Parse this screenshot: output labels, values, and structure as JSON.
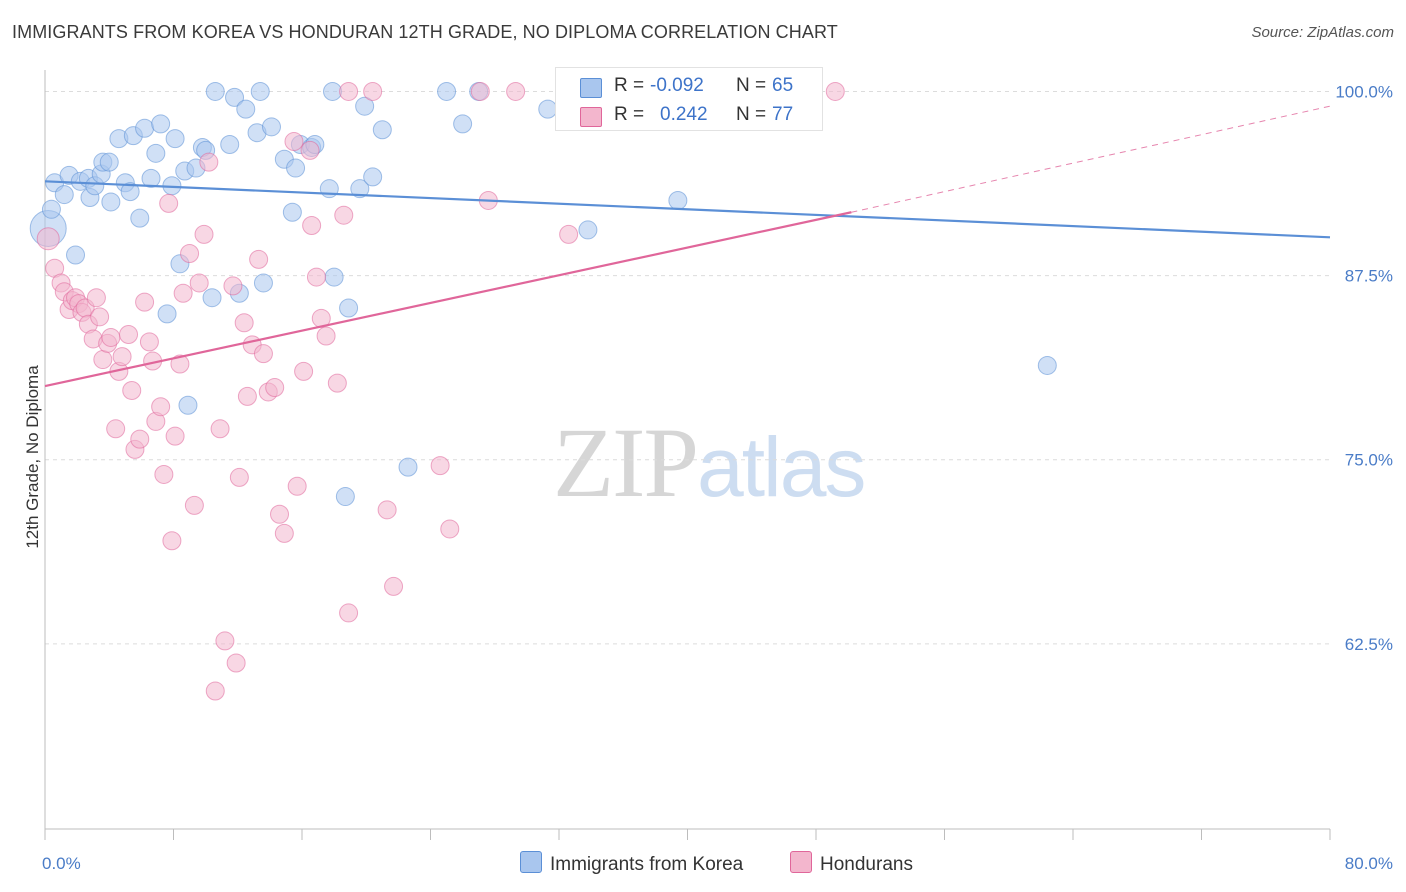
{
  "title": "IMMIGRANTS FROM KOREA VS HONDURAN 12TH GRADE, NO DIPLOMA CORRELATION CHART",
  "source": "Source: ZipAtlas.com",
  "watermark": {
    "zip": "ZIP",
    "atlas": "atlas"
  },
  "legend": {
    "rows": [
      {
        "r_label": "R =",
        "r_value": "-0.092",
        "n_label": "N =",
        "n_value": "65"
      },
      {
        "r_label": "R =",
        "r_value": "0.242",
        "n_label": "N =",
        "n_value": "77"
      }
    ]
  },
  "colors": {
    "korea": "#5b8fd6",
    "korea_fill": "#a9c6ee",
    "hondurans": "#e0669a",
    "hondurans_fill": "#f3b6cd",
    "axis_tick_text": "#4a7cc7",
    "grid": "#dcdcdc"
  },
  "chart_data": {
    "type": "scatter",
    "title": "IMMIGRANTS FROM KOREA VS HONDURAN 12TH GRADE, NO DIPLOMA CORRELATION CHART",
    "xlabel": "",
    "ylabel": "12th Grade, No Diploma",
    "xlim": [
      0,
      80
    ],
    "ylim": [
      50,
      102
    ],
    "x_tick_labels": [
      "0.0%",
      "80.0%"
    ],
    "y_ticks": [
      62.5,
      75.0,
      87.5,
      100.0
    ],
    "y_tick_labels": [
      "62.5%",
      "75.0%",
      "87.5%",
      "100.0%"
    ],
    "grid": true,
    "legend_position": "bottom",
    "series": [
      {
        "name": "Immigrants from Korea",
        "color": "#5b8fd6",
        "trend": {
          "x": [
            0,
            80
          ],
          "y": [
            93.9,
            90.1
          ],
          "dashed_to": null
        },
        "points": [
          [
            0.2,
            90.7,
            18
          ],
          [
            0.4,
            92.0,
            9
          ],
          [
            0.6,
            93.8,
            9
          ],
          [
            1.2,
            93.0,
            9
          ],
          [
            1.5,
            94.3,
            9
          ],
          [
            1.9,
            88.9,
            9
          ],
          [
            2.2,
            93.9,
            9
          ],
          [
            2.7,
            94.1,
            9
          ],
          [
            2.8,
            92.8,
            9
          ],
          [
            3.1,
            93.6,
            9
          ],
          [
            3.5,
            94.4,
            9
          ],
          [
            3.6,
            95.2,
            9
          ],
          [
            4.0,
            95.2,
            9
          ],
          [
            4.1,
            92.5,
            9
          ],
          [
            4.6,
            96.8,
            9
          ],
          [
            5.0,
            93.8,
            9
          ],
          [
            5.3,
            93.2,
            9
          ],
          [
            5.5,
            97.0,
            9
          ],
          [
            5.9,
            91.4,
            9
          ],
          [
            6.2,
            97.5,
            9
          ],
          [
            6.6,
            94.1,
            9
          ],
          [
            6.9,
            95.8,
            9
          ],
          [
            7.2,
            97.8,
            9
          ],
          [
            7.6,
            84.9,
            9
          ],
          [
            7.9,
            93.6,
            9
          ],
          [
            8.1,
            96.8,
            9
          ],
          [
            8.4,
            88.3,
            9
          ],
          [
            8.7,
            94.6,
            9
          ],
          [
            8.9,
            78.7,
            9
          ],
          [
            9.4,
            94.8,
            9
          ],
          [
            9.8,
            96.2,
            9
          ],
          [
            10.0,
            96.0,
            9
          ],
          [
            10.4,
            86.0,
            9
          ],
          [
            10.6,
            100.0,
            9
          ],
          [
            11.5,
            96.4,
            9
          ],
          [
            11.8,
            99.6,
            9
          ],
          [
            12.1,
            86.3,
            9
          ],
          [
            12.5,
            98.8,
            9
          ],
          [
            13.2,
            97.2,
            9
          ],
          [
            13.4,
            100.0,
            9
          ],
          [
            13.6,
            87.0,
            9
          ],
          [
            14.1,
            97.6,
            9
          ],
          [
            14.9,
            95.4,
            9
          ],
          [
            15.4,
            91.8,
            9
          ],
          [
            15.6,
            94.8,
            9
          ],
          [
            15.9,
            96.4,
            9
          ],
          [
            16.6,
            96.2,
            9
          ],
          [
            16.8,
            96.4,
            9
          ],
          [
            17.7,
            93.4,
            9
          ],
          [
            17.9,
            100.0,
            9
          ],
          [
            18.0,
            87.4,
            9
          ],
          [
            18.7,
            72.5,
            9
          ],
          [
            18.9,
            85.3,
            9
          ],
          [
            19.6,
            93.4,
            9
          ],
          [
            19.9,
            99.0,
            9
          ],
          [
            20.4,
            94.2,
            9
          ],
          [
            21.0,
            97.4,
            9
          ],
          [
            22.6,
            74.5,
            9
          ],
          [
            25.0,
            100.0,
            9
          ],
          [
            26.0,
            97.8,
            9
          ],
          [
            27.0,
            100.0,
            9
          ],
          [
            31.3,
            98.8,
            9
          ],
          [
            33.8,
            90.6,
            9
          ],
          [
            39.4,
            92.6,
            9
          ],
          [
            62.4,
            81.4,
            9
          ]
        ]
      },
      {
        "name": "Hondurans",
        "color": "#e0669a",
        "trend": {
          "x": [
            0,
            50.2
          ],
          "y": [
            80.0,
            91.8
          ],
          "dashed_to": [
            80,
            99.0
          ]
        },
        "points": [
          [
            0.2,
            90.0,
            11
          ],
          [
            0.6,
            88.0,
            9
          ],
          [
            1.0,
            87.0,
            9
          ],
          [
            1.2,
            86.4,
            9
          ],
          [
            1.5,
            85.2,
            9
          ],
          [
            1.7,
            85.8,
            9
          ],
          [
            1.9,
            86.0,
            9
          ],
          [
            2.1,
            85.6,
            9
          ],
          [
            2.3,
            85.0,
            9
          ],
          [
            2.5,
            85.3,
            9
          ],
          [
            2.7,
            84.2,
            9
          ],
          [
            3.0,
            83.2,
            9
          ],
          [
            3.2,
            86.0,
            9
          ],
          [
            3.4,
            84.7,
            9
          ],
          [
            3.6,
            81.8,
            9
          ],
          [
            3.9,
            82.9,
            9
          ],
          [
            4.1,
            83.3,
            9
          ],
          [
            4.4,
            77.1,
            9
          ],
          [
            4.6,
            81.0,
            9
          ],
          [
            4.8,
            82.0,
            9
          ],
          [
            5.2,
            83.5,
            9
          ],
          [
            5.4,
            79.7,
            9
          ],
          [
            5.6,
            75.7,
            9
          ],
          [
            5.9,
            76.4,
            9
          ],
          [
            6.2,
            85.7,
            9
          ],
          [
            6.5,
            83.0,
            9
          ],
          [
            6.7,
            81.7,
            9
          ],
          [
            6.9,
            77.6,
            9
          ],
          [
            7.2,
            78.6,
            9
          ],
          [
            7.4,
            74.0,
            9
          ],
          [
            7.7,
            92.4,
            9
          ],
          [
            7.9,
            69.5,
            9
          ],
          [
            8.1,
            76.6,
            9
          ],
          [
            8.4,
            81.5,
            9
          ],
          [
            8.6,
            86.3,
            9
          ],
          [
            9.0,
            89.0,
            9
          ],
          [
            9.3,
            71.9,
            9
          ],
          [
            9.6,
            87.0,
            9
          ],
          [
            9.9,
            90.3,
            9
          ],
          [
            10.2,
            95.2,
            9
          ],
          [
            10.6,
            59.3,
            9
          ],
          [
            10.9,
            77.1,
            9
          ],
          [
            11.2,
            62.7,
            9
          ],
          [
            11.7,
            86.8,
            9
          ],
          [
            11.9,
            61.2,
            9
          ],
          [
            12.1,
            73.8,
            9
          ],
          [
            12.4,
            84.3,
            9
          ],
          [
            12.6,
            79.3,
            9
          ],
          [
            12.9,
            82.8,
            9
          ],
          [
            13.3,
            88.6,
            9
          ],
          [
            13.6,
            82.2,
            9
          ],
          [
            13.9,
            79.6,
            9
          ],
          [
            14.3,
            79.9,
            9
          ],
          [
            14.6,
            71.3,
            9
          ],
          [
            14.9,
            70.0,
            9
          ],
          [
            15.5,
            96.6,
            9
          ],
          [
            15.7,
            73.2,
            9
          ],
          [
            16.1,
            81.0,
            9
          ],
          [
            16.5,
            96.0,
            9
          ],
          [
            16.6,
            90.9,
            9
          ],
          [
            16.9,
            87.4,
            9
          ],
          [
            17.2,
            84.6,
            9
          ],
          [
            17.5,
            83.4,
            9
          ],
          [
            18.2,
            80.2,
            9
          ],
          [
            18.9,
            100.0,
            9
          ],
          [
            18.6,
            91.6,
            9
          ],
          [
            18.9,
            64.6,
            9
          ],
          [
            20.4,
            100.0,
            9
          ],
          [
            21.3,
            71.6,
            9
          ],
          [
            21.7,
            66.4,
            9
          ],
          [
            24.6,
            74.6,
            9
          ],
          [
            25.2,
            70.3,
            9
          ],
          [
            27.1,
            100.0,
            9
          ],
          [
            27.6,
            92.6,
            9
          ],
          [
            29.3,
            100.0,
            9
          ],
          [
            32.6,
            90.3,
            9
          ],
          [
            49.2,
            100.0,
            9
          ]
        ]
      }
    ]
  },
  "bottom_legend": [
    {
      "label": "Immigrants from Korea"
    },
    {
      "label": "Hondurans"
    }
  ]
}
